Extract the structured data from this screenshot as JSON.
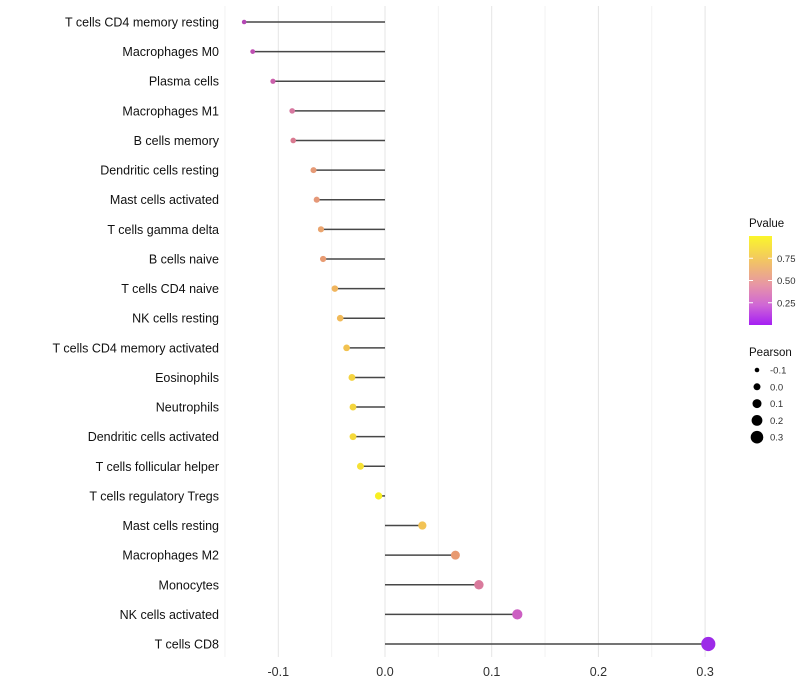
{
  "chart_data": {
    "type": "lollipop",
    "orientation": "horizontal",
    "title": "",
    "xlabel": "",
    "ylabel": "",
    "xlim": [
      -0.155,
      0.325
    ],
    "x_major_ticks": [
      -0.1,
      0.0,
      0.1,
      0.2,
      0.3
    ],
    "x_tick_labels": [
      "-0.1",
      "0.0",
      "0.1",
      "0.2",
      "0.3"
    ],
    "x_minor_ticks": [
      -0.15,
      -0.05,
      0.05,
      0.15,
      0.25
    ],
    "grid": {
      "vertical_only": true,
      "major_color": "#e4e4e4",
      "minor_color": "#f2f2f2"
    },
    "stem_color": "#474747",
    "baseline_x": 0.0,
    "rows": [
      {
        "label": "T cells CD4 memory resting",
        "pearson": -0.132,
        "pvalue_approx": 0.18,
        "color": "#b447b4"
      },
      {
        "label": "Macrophages M0",
        "pearson": -0.124,
        "pvalue_approx": 0.21,
        "color": "#be4fb2"
      },
      {
        "label": "Plasma cells",
        "pearson": -0.105,
        "pvalue_approx": 0.28,
        "color": "#cb60ac"
      },
      {
        "label": "Macrophages M1",
        "pearson": -0.087,
        "pvalue_approx": 0.37,
        "color": "#d778a0"
      },
      {
        "label": "B cells memory",
        "pearson": -0.086,
        "pvalue_approx": 0.38,
        "color": "#d97990"
      },
      {
        "label": "Dendritic cells resting",
        "pearson": -0.067,
        "pvalue_approx": 0.5,
        "color": "#e69a76"
      },
      {
        "label": "Mast cells activated",
        "pearson": -0.064,
        "pvalue_approx": 0.52,
        "color": "#e59878"
      },
      {
        "label": "T cells gamma delta",
        "pearson": -0.06,
        "pvalue_approx": 0.55,
        "color": "#eaa46e"
      },
      {
        "label": "B cells naive",
        "pearson": -0.058,
        "pvalue_approx": 0.56,
        "color": "#e89b72"
      },
      {
        "label": "T cells CD4 naive",
        "pearson": -0.047,
        "pvalue_approx": 0.64,
        "color": "#f0b55e"
      },
      {
        "label": "NK cells resting",
        "pearson": -0.042,
        "pvalue_approx": 0.67,
        "color": "#f1ba59"
      },
      {
        "label": "T cells CD4 memory activated",
        "pearson": -0.036,
        "pvalue_approx": 0.71,
        "color": "#f2c250"
      },
      {
        "label": "Eosinophils",
        "pearson": -0.031,
        "pvalue_approx": 0.78,
        "color": "#f4d340"
      },
      {
        "label": "Neutrophils",
        "pearson": -0.03,
        "pvalue_approx": 0.79,
        "color": "#f4d53e"
      },
      {
        "label": "Dendritic cells activated",
        "pearson": -0.03,
        "pvalue_approx": 0.81,
        "color": "#f5d93b"
      },
      {
        "label": "T cells follicular helper",
        "pearson": -0.023,
        "pvalue_approx": 0.86,
        "color": "#f6e136"
      },
      {
        "label": "T cells regulatory  Tregs",
        "pearson": -0.006,
        "pvalue_approx": 0.95,
        "color": "#f8ef22"
      },
      {
        "label": "Mast cells resting",
        "pearson": 0.035,
        "pvalue_approx": 0.7,
        "color": "#f2c355"
      },
      {
        "label": "Macrophages M2",
        "pearson": 0.066,
        "pvalue_approx": 0.51,
        "color": "#e89a71"
      },
      {
        "label": "Monocytes",
        "pearson": 0.088,
        "pvalue_approx": 0.37,
        "color": "#d97a9c"
      },
      {
        "label": "NK cells activated",
        "pearson": 0.124,
        "pvalue_approx": 0.21,
        "color": "#cc5fc2"
      },
      {
        "label": "T cells CD8",
        "pearson": 0.303,
        "pvalue_approx": 0.002,
        "color": "#9d2be8"
      }
    ],
    "legend_pvalue": {
      "title": "Pvalue",
      "tick_labels": [
        "0.75",
        "0.50",
        "0.25"
      ],
      "tick_values": [
        0.75,
        0.5,
        0.25
      ],
      "range": [
        0,
        1
      ],
      "gradient_stops": [
        {
          "offset": 0.0,
          "color": "#fbf62b"
        },
        {
          "offset": 0.28,
          "color": "#f2c464"
        },
        {
          "offset": 0.55,
          "color": "#e795a6"
        },
        {
          "offset": 0.78,
          "color": "#cf66d6"
        },
        {
          "offset": 1.0,
          "color": "#a51ff3"
        }
      ]
    },
    "legend_pearson": {
      "title": "Pearson",
      "items": [
        {
          "label": "-0.1",
          "value": -0.1,
          "radius": 2.3
        },
        {
          "label": "0.0",
          "value": 0.0,
          "radius": 3.5
        },
        {
          "label": "0.1",
          "value": 0.1,
          "radius": 4.5
        },
        {
          "label": "0.2",
          "value": 0.2,
          "radius": 5.4
        },
        {
          "label": "0.3",
          "value": 0.3,
          "radius": 6.3
        }
      ],
      "dot_color": "#000000"
    }
  }
}
